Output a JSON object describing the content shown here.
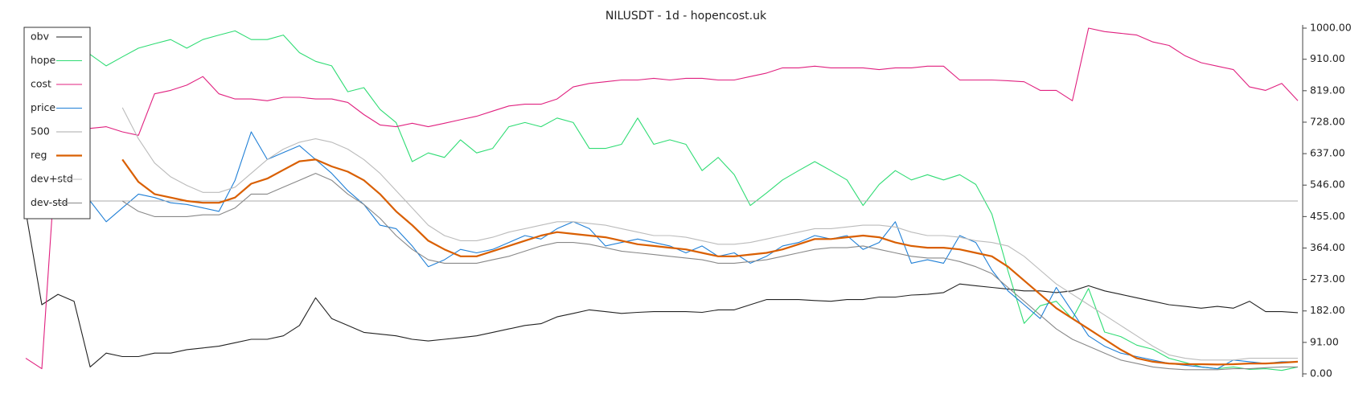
{
  "chart_data": {
    "type": "line",
    "title": "NILUSDT - 1d - hopencost.uk",
    "categories": [
      null,
      null,
      null,
      null,
      null,
      null,
      null,
      null,
      null,
      null,
      null,
      null,
      null,
      null,
      null,
      null,
      null,
      null,
      null,
      null,
      null,
      null,
      null,
      null,
      null,
      null,
      null,
      null,
      null,
      null,
      null,
      null,
      null,
      null,
      null,
      null,
      null,
      null,
      null,
      null,
      null,
      null,
      null,
      null,
      null,
      null,
      null,
      null,
      null,
      null,
      null,
      null,
      null,
      null,
      null,
      null,
      null,
      null,
      null,
      null,
      null,
      null,
      null,
      null,
      null,
      null,
      null,
      null,
      null,
      null,
      null,
      null,
      null,
      null,
      null,
      null,
      null,
      null,
      null,
      null
    ],
    "ylim": [
      0,
      1000
    ],
    "yticks": [
      {
        "value": 0,
        "label": "0.00"
      },
      {
        "value": 91,
        "label": "91.00"
      },
      {
        "value": 182,
        "label": "182.00"
      },
      {
        "value": 273,
        "label": "273.00"
      },
      {
        "value": 364,
        "label": "364.00"
      },
      {
        "value": 455,
        "label": "455.00"
      },
      {
        "value": 546,
        "label": "546.00"
      },
      {
        "value": 637,
        "label": "637.00"
      },
      {
        "value": 728,
        "label": "728.00"
      },
      {
        "value": 819,
        "label": "819.00"
      },
      {
        "value": 910,
        "label": "910.00"
      },
      {
        "value": 1000,
        "label": "1000.00"
      }
    ],
    "y_axis_side": "right",
    "grid": false,
    "legend": "upper left",
    "series": [
      {
        "name": "obv",
        "color": "#222222",
        "values": [
          470,
          200,
          230,
          210,
          20,
          60,
          50,
          50,
          60,
          60,
          70,
          75,
          80,
          90,
          100,
          100,
          110,
          140,
          220,
          160,
          140,
          120,
          115,
          110,
          100,
          95,
          100,
          105,
          110,
          120,
          130,
          140,
          145,
          165,
          175,
          185,
          180,
          175,
          178,
          180,
          180,
          180,
          178,
          185,
          185,
          200,
          215,
          215,
          215,
          212,
          210,
          215,
          215,
          222,
          222,
          228,
          230,
          235,
          260,
          255,
          250,
          245,
          240,
          240,
          235,
          240,
          255,
          240,
          230,
          220,
          210,
          200,
          195,
          190,
          195,
          190,
          210,
          180,
          180,
          177
        ]
      },
      {
        "name": "hope",
        "color": "#2fdc74",
        "values": [
          null,
          null,
          910,
          917,
          924,
          891,
          917,
          942,
          955,
          967,
          942,
          967,
          980,
          992,
          967,
          967,
          980,
          929,
          904,
          891,
          816,
          828,
          765,
          727,
          614,
          639,
          626,
          677,
          639,
          652,
          715,
          727,
          715,
          740,
          727,
          652,
          652,
          664,
          740,
          664,
          677,
          664,
          588,
          626,
          576,
          487,
          523,
          561,
          588,
          614,
          588,
          561,
          487,
          548,
          588,
          561,
          576,
          561,
          576,
          548,
          462,
          298,
          146,
          197,
          210,
          159,
          247,
          121,
          108,
          83,
          71,
          45,
          33,
          20,
          15,
          20,
          13,
          15,
          10,
          20
        ]
      },
      {
        "name": "cost",
        "color": "#e0207f",
        "values": [
          45,
          15,
          715,
          715,
          710,
          715,
          700,
          690,
          810,
          820,
          835,
          860,
          810,
          795,
          795,
          790,
          800,
          800,
          795,
          795,
          785,
          750,
          720,
          715,
          725,
          715,
          725,
          735,
          745,
          760,
          775,
          780,
          780,
          795,
          830,
          840,
          845,
          850,
          850,
          855,
          850,
          855,
          855,
          850,
          850,
          860,
          870,
          885,
          885,
          890,
          885,
          885,
          885,
          880,
          885,
          885,
          890,
          890,
          850,
          850,
          850,
          848,
          845,
          820,
          820,
          790,
          1000,
          990,
          985,
          980,
          960,
          950,
          920,
          900,
          890,
          880,
          830,
          820,
          840,
          790
        ]
      },
      {
        "name": "price",
        "color": "#1f7fd6",
        "values": [
          null,
          null,
          null,
          480,
          500,
          440,
          480,
          520,
          510,
          495,
          490,
          480,
          470,
          560,
          700,
          620,
          640,
          660,
          620,
          580,
          530,
          490,
          430,
          420,
          370,
          310,
          330,
          360,
          350,
          360,
          380,
          400,
          390,
          420,
          440,
          420,
          370,
          380,
          390,
          380,
          370,
          350,
          370,
          340,
          350,
          320,
          340,
          370,
          380,
          400,
          390,
          400,
          360,
          380,
          440,
          320,
          330,
          320,
          400,
          380,
          300,
          240,
          200,
          160,
          250,
          180,
          110,
          80,
          60,
          50,
          40,
          30,
          25,
          20,
          15,
          40,
          35,
          30,
          35,
          35
        ]
      },
      {
        "name": "500",
        "color": "#aaaaaa",
        "values": [
          500,
          500,
          500,
          500,
          500,
          500,
          500,
          500,
          500,
          500,
          500,
          500,
          500,
          500,
          500,
          500,
          500,
          500,
          500,
          500,
          500,
          500,
          500,
          500,
          500,
          500,
          500,
          500,
          500,
          500,
          500,
          500,
          500,
          500,
          500,
          500,
          500,
          500,
          500,
          500,
          500,
          500,
          500,
          500,
          500,
          500,
          500,
          500,
          500,
          500,
          500,
          500,
          500,
          500,
          500,
          500,
          500,
          500,
          500,
          500,
          500,
          500,
          500,
          500,
          500,
          500,
          500,
          500,
          500,
          500,
          500,
          500,
          500,
          500,
          500,
          500,
          500,
          500,
          500,
          500
        ]
      },
      {
        "name": "reg",
        "color": "#d95f02",
        "values": [
          null,
          null,
          null,
          null,
          null,
          null,
          620,
          555,
          520,
          510,
          500,
          495,
          495,
          510,
          550,
          565,
          590,
          615,
          620,
          600,
          585,
          560,
          520,
          470,
          430,
          385,
          360,
          340,
          340,
          355,
          370,
          385,
          400,
          410,
          405,
          400,
          395,
          385,
          375,
          370,
          365,
          360,
          350,
          340,
          340,
          345,
          350,
          360,
          375,
          390,
          390,
          395,
          400,
          395,
          380,
          370,
          365,
          365,
          360,
          350,
          340,
          310,
          270,
          230,
          190,
          160,
          130,
          100,
          70,
          45,
          35,
          30,
          28,
          28,
          27,
          28,
          30,
          30,
          32,
          35
        ]
      },
      {
        "name": "dev+std",
        "color": "#bbbbbb",
        "values": [
          null,
          null,
          null,
          null,
          null,
          null,
          770,
          680,
          610,
          570,
          545,
          525,
          525,
          540,
          580,
          620,
          650,
          670,
          680,
          670,
          650,
          620,
          580,
          530,
          480,
          430,
          400,
          385,
          385,
          395,
          410,
          420,
          430,
          440,
          440,
          435,
          430,
          420,
          410,
          400,
          400,
          395,
          385,
          375,
          375,
          380,
          390,
          400,
          410,
          420,
          420,
          425,
          430,
          430,
          425,
          410,
          400,
          400,
          395,
          385,
          380,
          370,
          340,
          300,
          260,
          230,
          200,
          170,
          140,
          110,
          80,
          55,
          45,
          40,
          40,
          40,
          45,
          45,
          45,
          45
        ]
      },
      {
        "name": "dev-std",
        "color": "#888888",
        "values": [
          null,
          null,
          null,
          null,
          null,
          null,
          500,
          470,
          455,
          455,
          455,
          460,
          460,
          480,
          520,
          520,
          540,
          560,
          580,
          560,
          520,
          490,
          450,
          400,
          360,
          330,
          320,
          320,
          320,
          330,
          340,
          355,
          370,
          380,
          380,
          375,
          365,
          355,
          350,
          345,
          340,
          335,
          330,
          320,
          320,
          325,
          330,
          340,
          350,
          360,
          365,
          365,
          370,
          360,
          350,
          340,
          335,
          335,
          325,
          310,
          290,
          250,
          210,
          170,
          130,
          100,
          80,
          60,
          40,
          30,
          20,
          15,
          12,
          12,
          12,
          15,
          15,
          18,
          20,
          20
        ]
      }
    ]
  }
}
